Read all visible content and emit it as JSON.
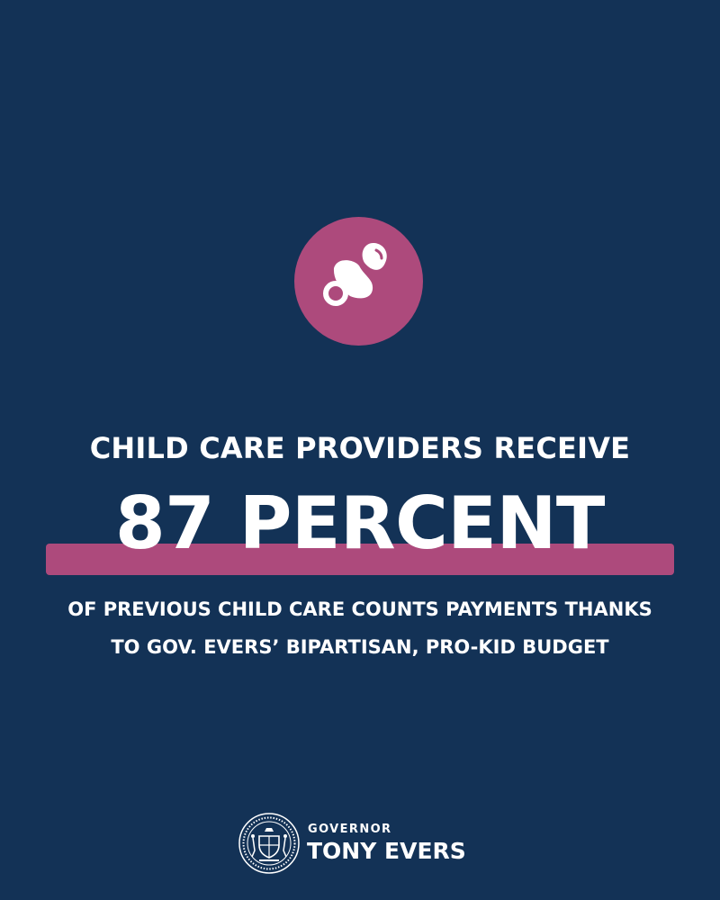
{
  "icon": {
    "name": "pacifier-icon",
    "circle_color": "#ad4a7c"
  },
  "headline": "CHILD CARE PROVIDERS RECEIVE",
  "stat": "87 PERCENT",
  "subline": [
    "OF PREVIOUS CHILD CARE COUNTS PAYMENTS THANKS",
    "TO GOV. EVERS’ BIPARTISAN, PRO-KID BUDGET"
  ],
  "footer": {
    "title": "GOVERNOR",
    "name": "TONY EVERS",
    "seal_icon": "state-seal-icon"
  },
  "colors": {
    "background": "#133256",
    "accent": "#ad4a7c",
    "text": "#ffffff"
  }
}
